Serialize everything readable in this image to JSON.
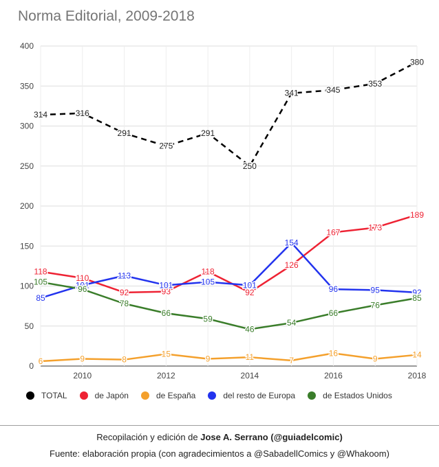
{
  "chart_data": {
    "type": "line",
    "title": "Norma Editorial, 2009-2018",
    "x": [
      2009,
      2010,
      2011,
      2012,
      2013,
      2014,
      2015,
      2016,
      2017,
      2018
    ],
    "x_ticks": [
      "2010",
      "2012",
      "2014",
      "2016",
      "2018"
    ],
    "y_ticks": [
      "0",
      "50",
      "100",
      "150",
      "200",
      "250",
      "300",
      "350",
      "400"
    ],
    "ylim": [
      0,
      400
    ],
    "xlim": [
      2009,
      2018
    ],
    "grid": true,
    "legend_position": "bottom",
    "series": [
      {
        "name": "TOTAL",
        "color": "#000000",
        "dashed": true,
        "values": [
          314,
          316,
          291,
          275,
          291,
          250,
          341,
          345,
          353,
          380
        ]
      },
      {
        "name": "de Japón",
        "color": "#ee2233",
        "values": [
          118,
          110,
          92,
          93,
          118,
          92,
          126,
          167,
          173,
          189
        ]
      },
      {
        "name": "de España",
        "color": "#f4a02c",
        "values": [
          6,
          9,
          8,
          15,
          9,
          11,
          7,
          16,
          9,
          14
        ]
      },
      {
        "name": "del resto de Europa",
        "color": "#2233ee",
        "values": [
          85,
          101,
          113,
          101,
          105,
          101,
          154,
          96,
          95,
          92
        ]
      },
      {
        "name": "de Estados Unidos",
        "color": "#3a7d2a",
        "values": [
          105,
          96,
          78,
          66,
          59,
          46,
          54,
          66,
          76,
          85
        ]
      }
    ]
  },
  "footer": {
    "line1_prefix": "Recopilación y edición de ",
    "line1_bold": "Jose A. Serrano (@guiadelcomic)",
    "line2": "Fuente: elaboración propia (con agradecimientos a @SabadellComics y @Whakoom)"
  }
}
